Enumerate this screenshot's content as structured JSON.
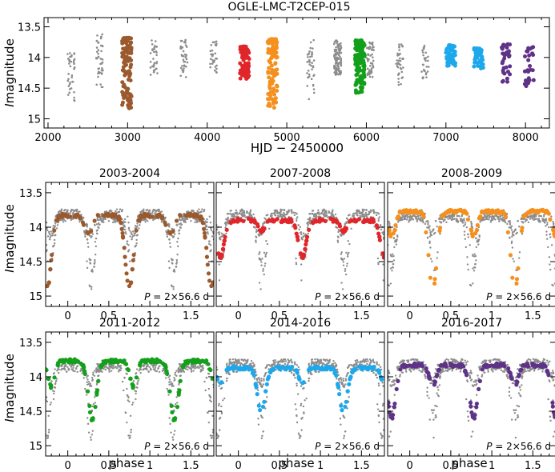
{
  "figure": {
    "title": "OGLE-LMC-T2CEP-015",
    "top_xlabel": "HJD − 2450000",
    "ylabel_italic": "I",
    "ylabel_rest": "magnitude",
    "bottom_xlabel": "phase",
    "background_color": "#cccccc"
  },
  "colors": {
    "background_points": "#8c8c8c",
    "2003-2004": "#9b5a2e",
    "2007-2008": "#e0262a",
    "2008-2009": "#f5901e",
    "2011-2012": "#12a01a",
    "2014-2016": "#1ea8ec",
    "2016-2017": "#5e3287"
  },
  "chart_data": [
    {
      "id": "light-curve",
      "type": "scatter",
      "title": "OGLE-LMC-T2CEP-015",
      "xlabel": "HJD − 2450000",
      "ylabel": "I magnitude",
      "xlim": [
        1950,
        8300
      ],
      "ylim": [
        15.15,
        13.35
      ],
      "y_inverted": true,
      "xticks": [
        2000,
        3000,
        4000,
        5000,
        6000,
        7000,
        8000
      ],
      "yticks": [
        13.5,
        14,
        14.5,
        15
      ],
      "ytick_labels": [
        "13.5",
        "14",
        "14.5",
        "15"
      ],
      "gray_seasons": [
        {
          "center": 2290,
          "n": 40,
          "min": 13.9,
          "max": 14.75
        },
        {
          "center": 2650,
          "n": 45,
          "min": 13.62,
          "max": 14.5
        },
        {
          "center": 3330,
          "n": 32,
          "min": 13.72,
          "max": 14.3
        },
        {
          "center": 3710,
          "n": 38,
          "min": 13.7,
          "max": 14.33
        },
        {
          "center": 4080,
          "n": 30,
          "min": 13.72,
          "max": 14.25
        },
        {
          "center": 5300,
          "n": 40,
          "min": 13.68,
          "max": 14.72
        },
        {
          "center": 5640,
          "n": 110,
          "min": 13.72,
          "max": 14.3
        },
        {
          "center": 6050,
          "n": 55,
          "min": 13.75,
          "max": 14.35
        },
        {
          "center": 6420,
          "n": 40,
          "min": 13.78,
          "max": 14.45
        },
        {
          "center": 6740,
          "n": 30,
          "min": 13.8,
          "max": 14.35
        }
      ],
      "colored_seasons": [
        {
          "name": "2003-2004",
          "center": 2990,
          "n": 110,
          "min": 13.68,
          "max": 14.83
        },
        {
          "name": "2007-2008",
          "center": 4470,
          "n": 75,
          "min": 13.82,
          "max": 14.35
        },
        {
          "name": "2008-2009",
          "center": 4820,
          "n": 110,
          "min": 13.7,
          "max": 14.82
        },
        {
          "name": "2011-2012",
          "center": 5920,
          "n": 140,
          "min": 13.72,
          "max": 14.58
        },
        {
          "name": "2014-2016",
          "center": 7060,
          "n": 55,
          "min": 13.8,
          "max": 14.15
        },
        {
          "name": "2014-2016",
          "center": 7410,
          "n": 45,
          "min": 13.85,
          "max": 14.18
        },
        {
          "name": "2016-2017",
          "center": 7760,
          "n": 35,
          "min": 13.78,
          "max": 14.4
        },
        {
          "name": "2016-2017",
          "center": 8050,
          "n": 25,
          "min": 13.82,
          "max": 14.52
        }
      ]
    },
    {
      "id": "phased-curves",
      "type": "scatter",
      "xlabel": "phase",
      "ylabel": "I magnitude",
      "xlim": [
        -0.27,
        1.78
      ],
      "ylim": [
        15.15,
        13.35
      ],
      "y_inverted": true,
      "xticks": [
        0,
        0.5,
        1,
        1.5
      ],
      "xtick_labels": [
        "0",
        "0.5",
        "1",
        "1.5"
      ],
      "yticks": [
        13.5,
        14,
        14.5,
        15
      ],
      "ytick_labels": [
        "13.5",
        "14",
        "14.5",
        "15"
      ],
      "period_label": "P",
      "period_value": " = 2×56.6 d",
      "panels": [
        {
          "label": "2003-2004",
          "deep": 14.82,
          "shallow": 14.06,
          "max_bright": 13.78,
          "deep_phase": 0.75
        },
        {
          "label": "2007-2008",
          "deep": 14.38,
          "shallow": 14.0,
          "max_bright": 13.85,
          "deep_phase": 0.78
        },
        {
          "label": "2008-2009",
          "deep": 14.85,
          "shallow": 14.1,
          "max_bright": 13.72,
          "deep_phase": 0.28
        },
        {
          "label": "2011-2012",
          "deep": 14.58,
          "shallow": 14.1,
          "max_bright": 13.72,
          "deep_phase": 0.3
        },
        {
          "label": "2014-2016",
          "deep": 14.45,
          "shallow": 14.05,
          "max_bright": 13.82,
          "deep_phase": 0.28
        },
        {
          "label": "2016-2017",
          "deep": 14.55,
          "shallow": 14.08,
          "max_bright": 13.78,
          "deep_phase": 0.78
        }
      ]
    }
  ]
}
